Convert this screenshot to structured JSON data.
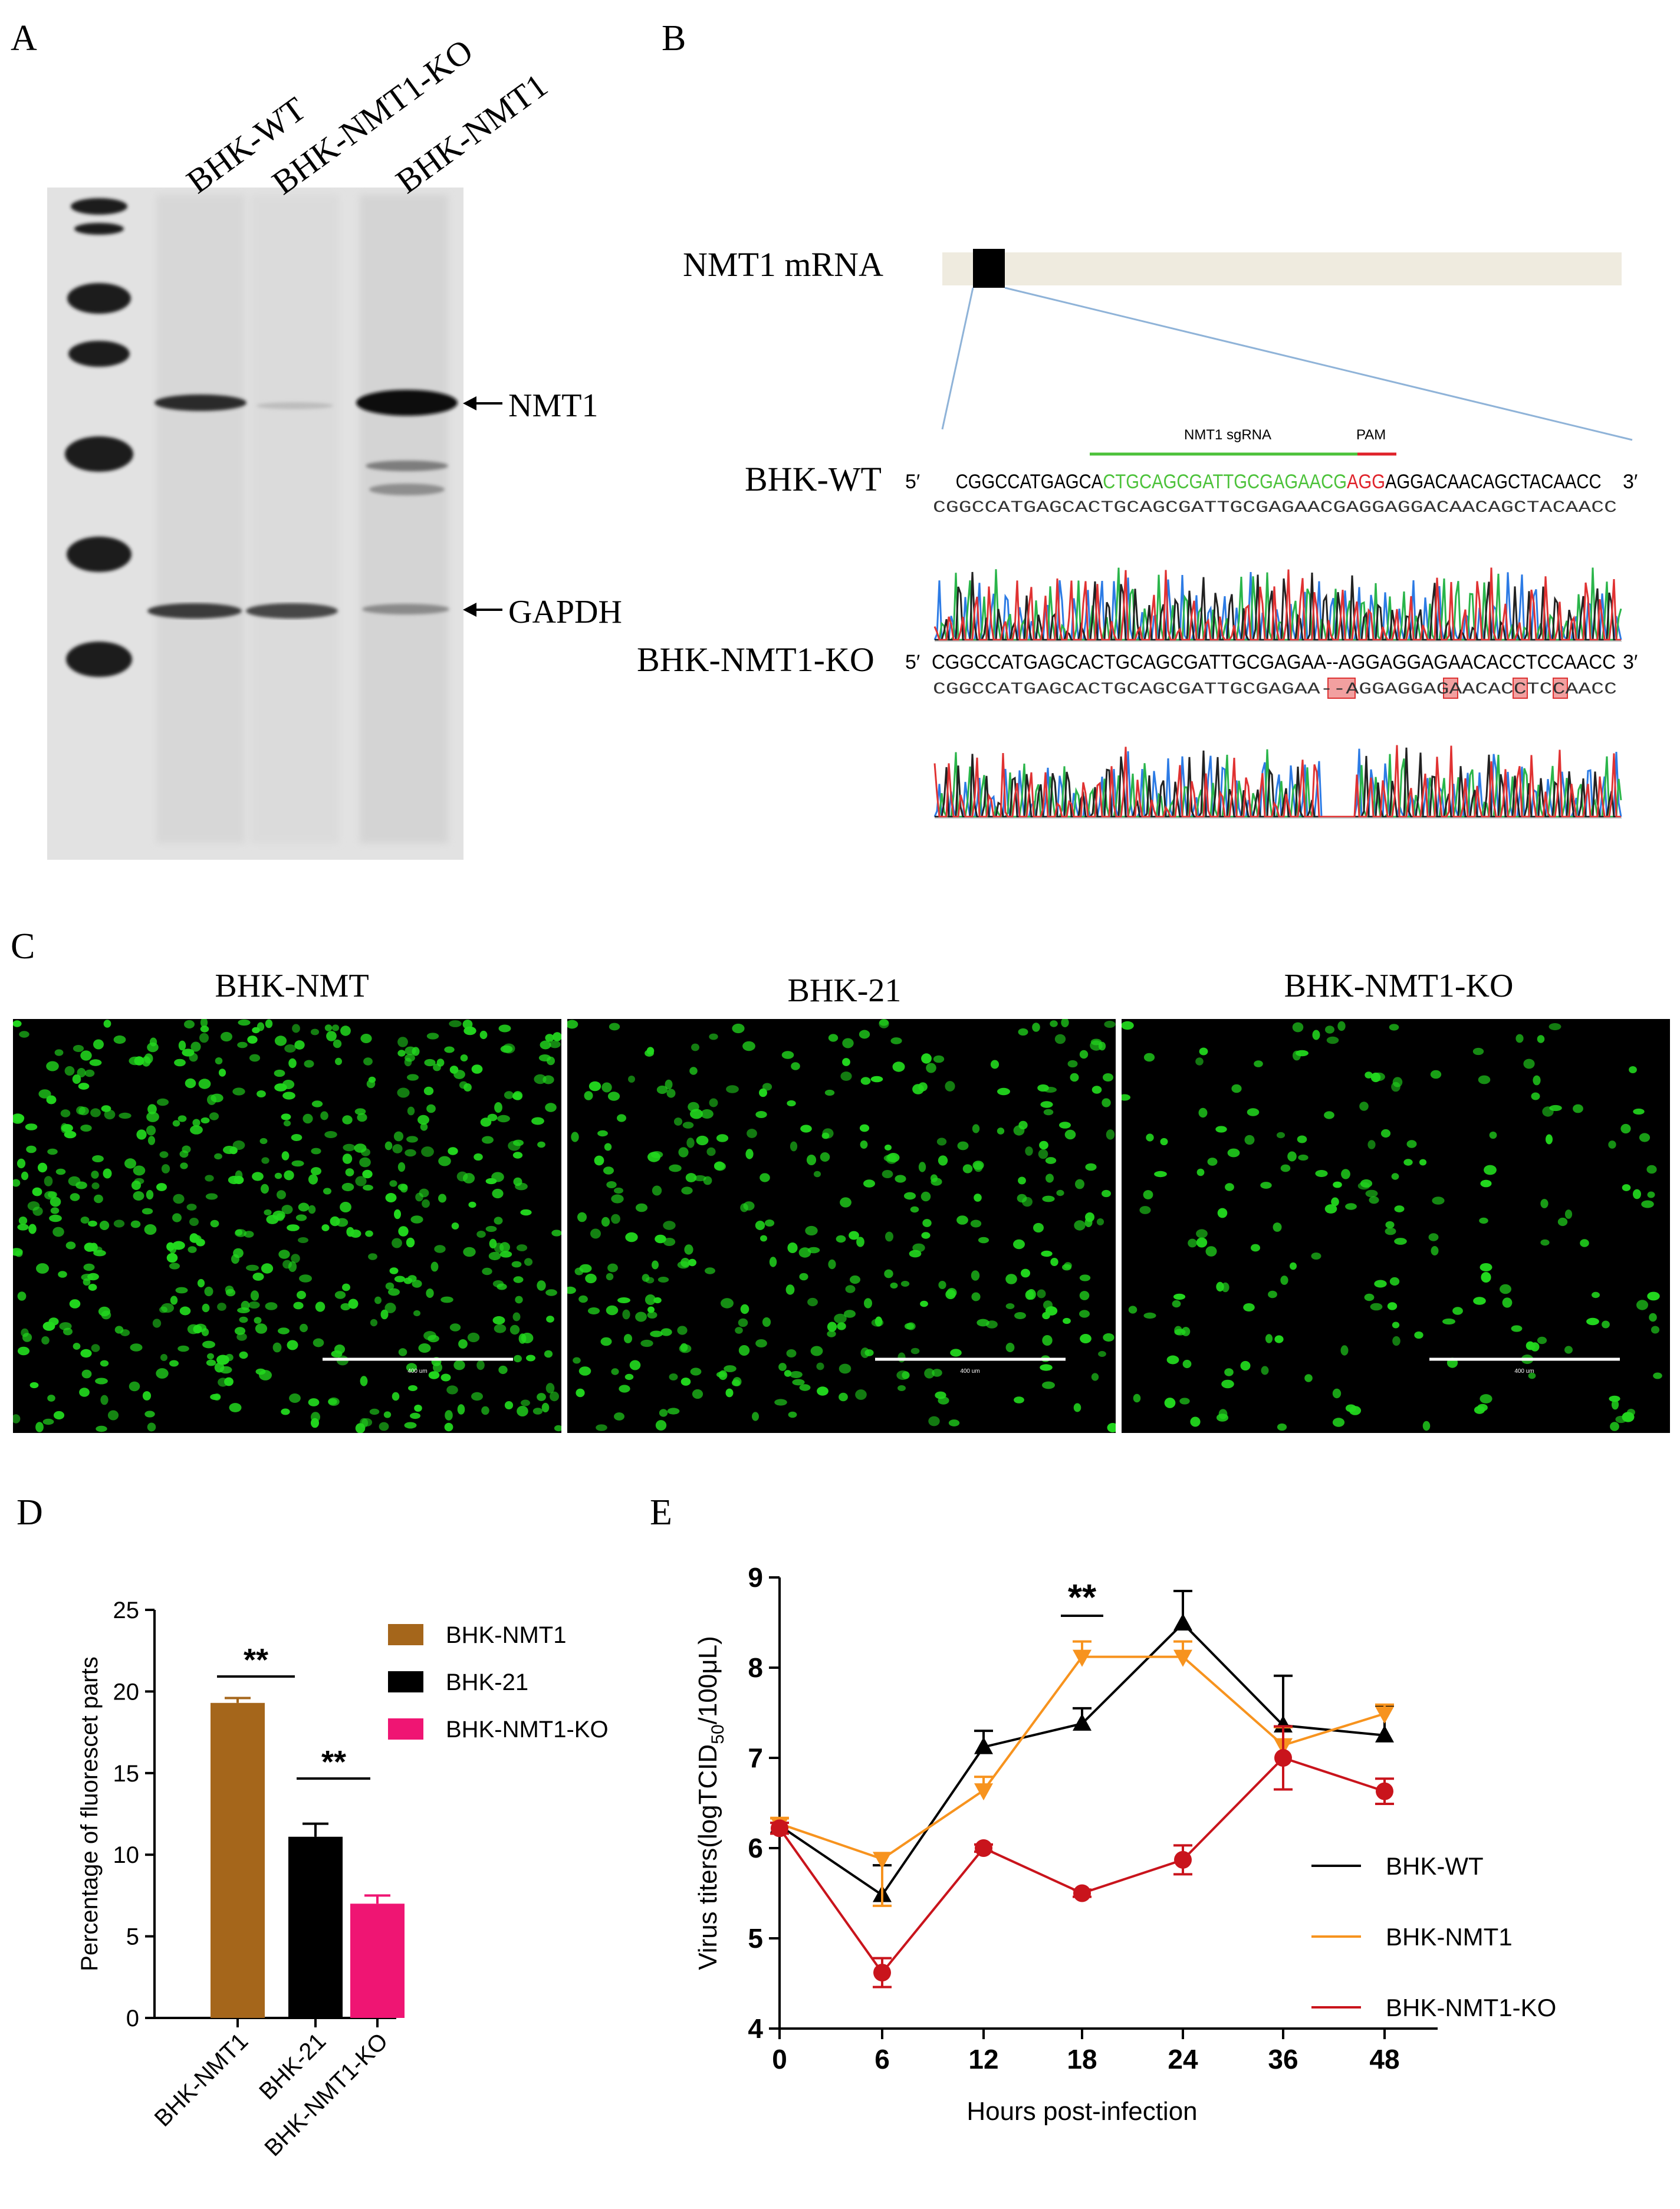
{
  "panels": {
    "a": "A",
    "b": "B",
    "c": "C",
    "d": "D",
    "e": "E"
  },
  "panel_a": {
    "lanes": [
      "BHK-WT",
      "BHK-NMT1-KO",
      "BHK-NMT1"
    ],
    "band_labels": [
      "NMT1",
      "GAPDH"
    ],
    "band_arrows": [
      "←",
      "←"
    ]
  },
  "panel_b": {
    "mrna_label": "NMT1 mRNA",
    "sgrna_label": "NMT1 sgRNA",
    "pam_label": "PAM",
    "wt_label": "BHK-WT",
    "ko_label": "BHK-NMT1-KO",
    "five_prime": "5′",
    "three_prime": "3′",
    "wt_seq_parts": [
      "CGGCCATGAGCA",
      "CTGCAGCGATTGCGAGAACG",
      "AGG",
      "AGGACAACAGCTACAACC"
    ],
    "wt_trace_seq": "CGGCCATGAGCACTGCAGCGATTGCGAGAACGAGGAGGACAACAGCTACAACC",
    "ko_seq": "CGGCCATGAGCACTGCAGCGATTGCGAGAA--AGGAGGAGAACACCTCCAACC",
    "ko_trace_seq": "CGGCCATGAGCACTGCAGCGATTGCGAGAA--AGGAGGAGAACACCTCCAACC",
    "colors": {
      "sgrna": "#4cc23a",
      "pam": "#e0222a",
      "mrna_bar": "#efebdf",
      "mrna_box": "#000000",
      "zoom_line": "#8fb3d8"
    }
  },
  "panel_c": {
    "titles": [
      "BHK-NMT",
      "BHK-21",
      "BHK-NMT1-KO"
    ],
    "scale_label": "400 um",
    "cell_color": "#22d81e"
  },
  "chart_data": [
    {
      "type": "bar",
      "panel": "D",
      "categories": [
        "BHK-NMT1",
        "BHK-21",
        "BHK-NMT1-KO"
      ],
      "values": [
        19.3,
        11.1,
        7.0
      ],
      "errors": [
        0.3,
        0.8,
        0.5
      ],
      "colors": [
        "#a5661b",
        "#000000",
        "#ef1573"
      ],
      "ylabel": "Percentage of fluorescet parts",
      "ylim": [
        0,
        25
      ],
      "yticks": [
        0,
        5,
        10,
        15,
        20,
        25
      ],
      "legend": [
        "BHK-NMT1",
        "BHK-21",
        "BHK-NMT1-KO"
      ],
      "significance": [
        {
          "from": 0,
          "to": 1,
          "label": "**"
        },
        {
          "from": 1,
          "to": 2,
          "label": "**"
        }
      ]
    },
    {
      "type": "line",
      "panel": "E",
      "x": [
        "0",
        "6",
        "12",
        "18",
        "24",
        "36",
        "48"
      ],
      "xlabel": "Hours post-infection",
      "ylabel_main": "Virus titers(logTCID",
      "ylabel_sub": "50",
      "ylabel_tail": "/100μL)",
      "ylim": [
        4,
        9
      ],
      "yticks": [
        4,
        5,
        6,
        7,
        8,
        9
      ],
      "series": [
        {
          "name": "BHK-WT",
          "color": "#000000",
          "marker": "triangle-up",
          "values": [
            6.25,
            5.48,
            7.12,
            7.38,
            8.49,
            7.36,
            7.25
          ],
          "errors": [
            0.08,
            0.33,
            0.18,
            0.17,
            0.36,
            0.55,
            0.33
          ]
        },
        {
          "name": "BHK-NMT1",
          "color": "#f7931e",
          "marker": "triangle-down",
          "values": [
            6.27,
            5.88,
            6.64,
            8.12,
            8.12,
            7.14,
            7.49
          ],
          "errors": [
            0.06,
            0.52,
            0.15,
            0.17,
            0.17,
            0.2,
            0.1
          ]
        },
        {
          "name": "BHK-NMT1-KO",
          "color": "#c9141c",
          "marker": "circle",
          "values": [
            6.22,
            4.62,
            6.0,
            5.5,
            5.87,
            7.0,
            6.63
          ],
          "errors": [
            0.06,
            0.16,
            0.04,
            0.04,
            0.16,
            0.35,
            0.14
          ]
        }
      ],
      "significance": [
        {
          "x": "18",
          "label": "**"
        }
      ]
    }
  ]
}
